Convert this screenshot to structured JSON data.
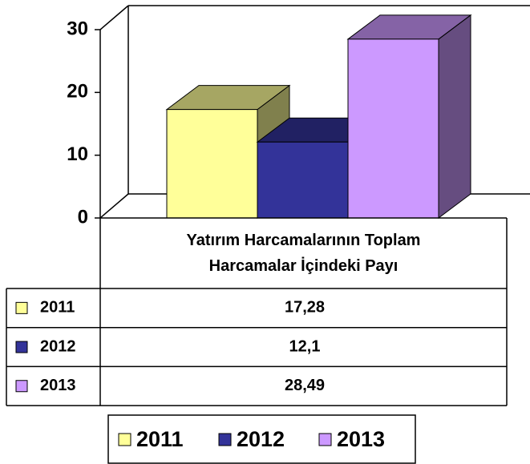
{
  "chart_data": {
    "type": "bar3d",
    "categories": [
      "Yatırım Harcamalarının Toplam Harcamalar İçindeki Payı"
    ],
    "series": [
      {
        "name": "2011",
        "color": "#ffff99",
        "values": [
          17.28
        ],
        "value_labels": [
          "17,28"
        ]
      },
      {
        "name": "2012",
        "color": "#333399",
        "values": [
          12.1
        ],
        "value_labels": [
          "12,1"
        ]
      },
      {
        "name": "2013",
        "color": "#cc99ff",
        "values": [
          28.49
        ],
        "value_labels": [
          "28,49"
        ]
      }
    ],
    "ylim": [
      0,
      30
    ],
    "yticks": [
      0,
      10,
      20,
      30
    ],
    "grid": false,
    "legend": "bottom"
  }
}
